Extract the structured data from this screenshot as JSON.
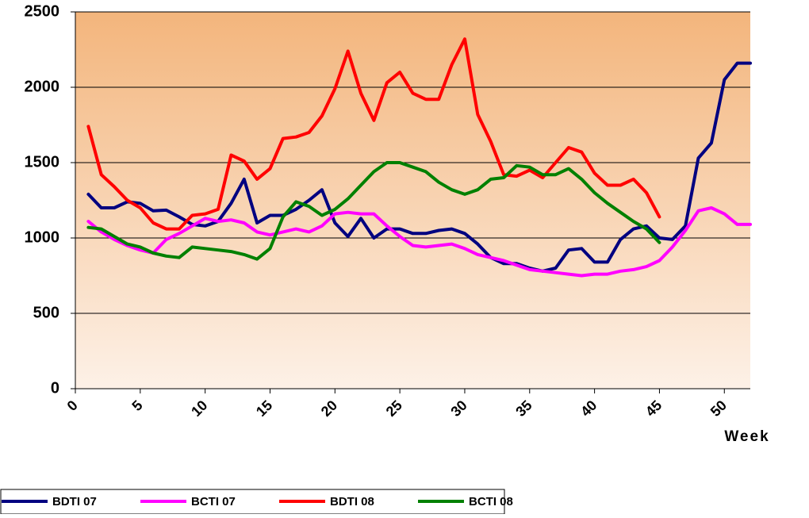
{
  "chart_data": {
    "type": "line",
    "x_label": "Week",
    "x": [
      1,
      2,
      3,
      4,
      5,
      6,
      7,
      8,
      9,
      10,
      11,
      12,
      13,
      14,
      15,
      16,
      17,
      18,
      19,
      20,
      21,
      22,
      23,
      24,
      25,
      26,
      27,
      28,
      29,
      30,
      31,
      32,
      33,
      34,
      35,
      36,
      37,
      38,
      39,
      40,
      41,
      42,
      43,
      44,
      45,
      46,
      47,
      48,
      49,
      50,
      51,
      52
    ],
    "series": [
      {
        "name": "BDTI 07",
        "color": "#000080",
        "values": [
          1290,
          1200,
          1200,
          1240,
          1230,
          1180,
          1185,
          1140,
          1090,
          1080,
          1110,
          1230,
          1390,
          1100,
          1150,
          1150,
          1190,
          1250,
          1320,
          1100,
          1010,
          1130,
          1000,
          1060,
          1060,
          1030,
          1030,
          1050,
          1060,
          1030,
          960,
          870,
          830,
          830,
          800,
          780,
          800,
          920,
          930,
          840,
          840,
          990,
          1060,
          1080,
          1000,
          990,
          1080,
          1530,
          1630,
          2050,
          2160,
          2160
        ]
      },
      {
        "name": "BCTI 07",
        "color": "#ff00ff",
        "values": [
          1110,
          1040,
          990,
          950,
          920,
          900,
          990,
          1030,
          1080,
          1130,
          1110,
          1120,
          1100,
          1040,
          1020,
          1040,
          1060,
          1040,
          1080,
          1160,
          1170,
          1160,
          1160,
          1080,
          1010,
          950,
          940,
          950,
          960,
          930,
          890,
          870,
          850,
          820,
          790,
          780,
          770,
          760,
          750,
          760,
          760,
          780,
          790,
          810,
          850,
          940,
          1050,
          1180,
          1200,
          1160,
          1090,
          1090
        ]
      },
      {
        "name": "BDTI 08",
        "color": "#ff0000",
        "values": [
          1740,
          1420,
          1340,
          1250,
          1200,
          1100,
          1060,
          1060,
          1150,
          1160,
          1190,
          1550,
          1510,
          1390,
          1460,
          1660,
          1670,
          1700,
          1810,
          1990,
          2240,
          1960,
          1780,
          2030,
          2100,
          1960,
          1920,
          1920,
          2150,
          2320,
          1820,
          1640,
          1420,
          1410,
          1450,
          1400,
          1500,
          1600,
          1570,
          1430,
          1350,
          1350,
          1390,
          1300,
          1140,
          null,
          null,
          null,
          null,
          null,
          null,
          null
        ]
      },
      {
        "name": "BCTI 08",
        "color": "#008000",
        "values": [
          1070,
          1060,
          1010,
          960,
          940,
          900,
          880,
          870,
          940,
          930,
          920,
          910,
          890,
          860,
          930,
          1140,
          1240,
          1210,
          1150,
          1190,
          1260,
          1350,
          1440,
          1500,
          1500,
          1470,
          1440,
          1370,
          1320,
          1290,
          1320,
          1390,
          1400,
          1480,
          1470,
          1420,
          1420,
          1460,
          1390,
          1300,
          1230,
          1170,
          1110,
          1060,
          970,
          null,
          null,
          null,
          null,
          null,
          null,
          null
        ]
      }
    ],
    "xlim": [
      0,
      52
    ],
    "xticks": [
      0,
      5,
      10,
      15,
      20,
      25,
      30,
      35,
      40,
      45,
      50
    ],
    "ylim": [
      0,
      2500
    ],
    "yticks": [
      0,
      500,
      1000,
      1500,
      2000,
      2500
    ],
    "grid": true,
    "legend": "bottom"
  }
}
